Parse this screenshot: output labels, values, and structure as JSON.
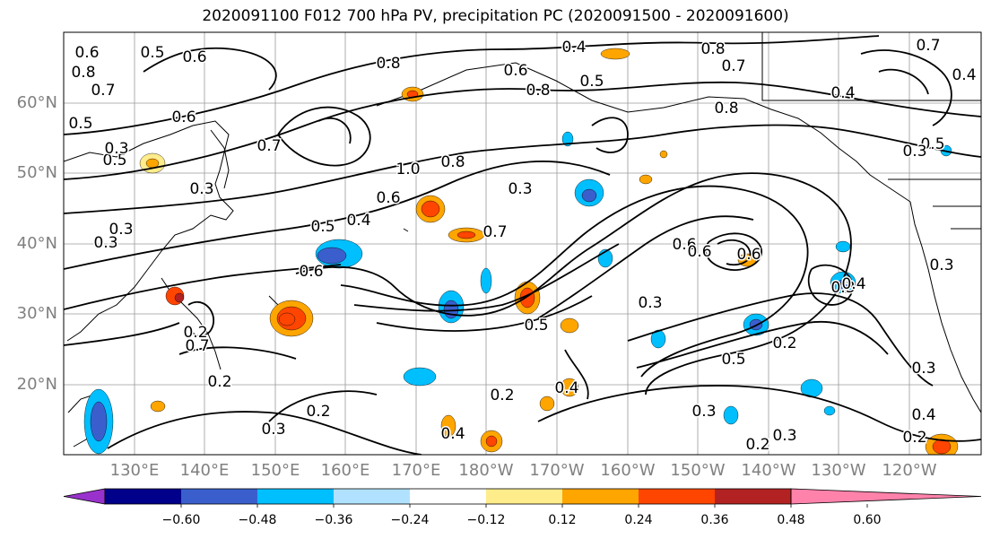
{
  "title": "2020091100 F012 700 hPa PV, precipitation PC (2020091500 - 2020091600)",
  "latitude_labels": [
    "60°N",
    "50°N",
    "40°N",
    "30°N",
    "20°N"
  ],
  "longitude_labels": [
    "130°E",
    "140°E",
    "150°E",
    "160°E",
    "170°E",
    "180°W",
    "170°W",
    "160°W",
    "150°W",
    "140°W",
    "130°W",
    "120°W"
  ],
  "colorbar": {
    "tick_labels": [
      "−0.60",
      "−0.48",
      "−0.36",
      "−0.24",
      "−0.12",
      "0.12",
      "0.24",
      "0.36",
      "0.48",
      "0.60"
    ],
    "colors": [
      "#9932cc",
      "#00008b",
      "#3a5fcd",
      "#00bfff",
      "#b0e2ff",
      "#ffffff",
      "#ffec8b",
      "#ffa500",
      "#ff4500",
      "#b22222",
      "#ff82ab"
    ]
  },
  "contour_labels": [
    "0.6",
    "0.8",
    "0.7",
    "0.5",
    "0.5",
    "0.8",
    "0.8",
    "0.7",
    "0.6",
    "0.5",
    "0.4",
    "0.6",
    "0.8",
    "0.7",
    "0.8",
    "0.6",
    "0.5",
    "0.3",
    "0.4",
    "0.7",
    "1.0",
    "0.8",
    "0.6",
    "0.5",
    "0.4",
    "0.3",
    "0.5",
    "0.7",
    "0.6",
    "0.4",
    "0.3",
    "0.3",
    "0.6",
    "0.6",
    "0.3",
    "0.3",
    "0.5",
    "0.3",
    "0.2",
    "0.2",
    "0.2",
    "0.2",
    "0.3",
    "0.4",
    "0.2",
    "0.3",
    "0.3",
    "0.2",
    "0.3",
    "0.4",
    "0.2",
    "0.4",
    "0.3",
    "0.3",
    "0.4",
    "0.6",
    "0.7",
    "0.5"
  ]
}
